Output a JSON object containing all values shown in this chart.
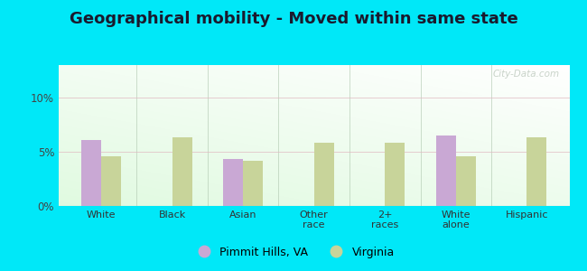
{
  "title": "Geographical mobility - Moved within same state",
  "categories": [
    "White",
    "Black",
    "Asian",
    "Other\nrace",
    "2+\nraces",
    "White\nalone",
    "Hispanic"
  ],
  "pimmit_values": [
    6.1,
    0.0,
    4.3,
    0.0,
    0.0,
    6.5,
    0.0
  ],
  "virginia_values": [
    4.6,
    6.3,
    4.2,
    5.8,
    5.8,
    4.6,
    6.3
  ],
  "pimmit_color": "#c9a8d4",
  "virginia_color": "#c8d49a",
  "bar_width": 0.28,
  "ylim": [
    0,
    13
  ],
  "yticks": [
    0,
    5,
    10
  ],
  "ytick_labels": [
    "0%",
    "5%",
    "10%"
  ],
  "legend_pimmit": "Pimmit Hills, VA",
  "legend_virginia": "Virginia",
  "outer_bg": "#00e8f8",
  "title_fontsize": 13,
  "title_color": "#1a1a2e",
  "watermark": "City-Data.com"
}
